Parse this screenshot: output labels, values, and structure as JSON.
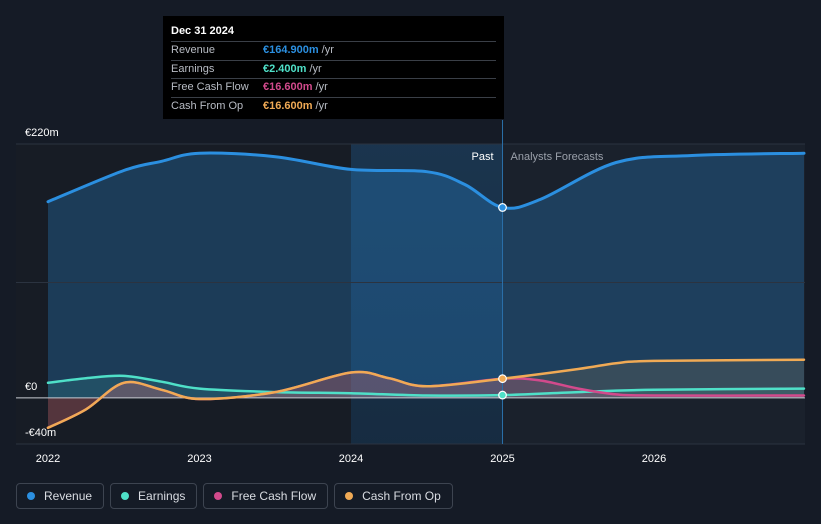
{
  "chart_data": {
    "type": "line",
    "x_ticks": [
      "2022",
      "2023",
      "2024",
      "2025",
      "2026"
    ],
    "x_range": [
      2021.82,
      2026.99
    ],
    "ylim": [
      -40,
      220
    ],
    "y_ticks": [
      {
        "value": 220,
        "label": "€220m"
      },
      {
        "value": 0,
        "label": "€0"
      },
      {
        "value": -40,
        "label": "-€40m"
      }
    ],
    "divider_x": 2025.0,
    "highlight_start": 2024.0,
    "past_label": "Past",
    "forecast_label": "Analysts Forecasts",
    "series": [
      {
        "name": "Revenue",
        "color": "#2b8fe0",
        "points": [
          [
            2022.0,
            170
          ],
          [
            2022.5,
            197
          ],
          [
            2022.75,
            205
          ],
          [
            2023.0,
            212
          ],
          [
            2023.5,
            209
          ],
          [
            2024.0,
            198
          ],
          [
            2024.5,
            196
          ],
          [
            2024.75,
            185
          ],
          [
            2025.0,
            165
          ],
          [
            2025.25,
            172
          ],
          [
            2025.75,
            204
          ],
          [
            2026.25,
            210
          ],
          [
            2026.99,
            212
          ]
        ]
      },
      {
        "name": "Earnings",
        "color": "#4fe0c8",
        "points": [
          [
            2022.0,
            13
          ],
          [
            2022.25,
            17
          ],
          [
            2022.5,
            19
          ],
          [
            2022.75,
            14
          ],
          [
            2023.0,
            8
          ],
          [
            2023.5,
            5
          ],
          [
            2024.0,
            4
          ],
          [
            2024.5,
            2
          ],
          [
            2025.0,
            2.4
          ],
          [
            2025.5,
            5
          ],
          [
            2026.0,
            7
          ],
          [
            2026.99,
            8
          ]
        ]
      },
      {
        "name": "Free Cash Flow",
        "color": "#d24a8c",
        "points": [
          [
            2022.0,
            -26
          ],
          [
            2022.25,
            -10
          ],
          [
            2022.5,
            13
          ],
          [
            2022.75,
            7
          ],
          [
            2023.0,
            -1
          ],
          [
            2023.5,
            5
          ],
          [
            2024.0,
            22
          ],
          [
            2024.25,
            17
          ],
          [
            2024.5,
            10
          ],
          [
            2025.0,
            16.6
          ],
          [
            2025.25,
            15
          ],
          [
            2025.5,
            8
          ],
          [
            2025.75,
            3
          ],
          [
            2026.0,
            2
          ],
          [
            2026.99,
            2
          ]
        ]
      },
      {
        "name": "Cash From Op",
        "color": "#f0aa55",
        "points": [
          [
            2022.0,
            -26
          ],
          [
            2022.25,
            -10
          ],
          [
            2022.5,
            13
          ],
          [
            2022.75,
            7
          ],
          [
            2023.0,
            -1
          ],
          [
            2023.5,
            5
          ],
          [
            2024.0,
            22
          ],
          [
            2024.25,
            17
          ],
          [
            2024.5,
            10
          ],
          [
            2025.0,
            16.6
          ],
          [
            2025.5,
            25
          ],
          [
            2025.75,
            30
          ],
          [
            2026.0,
            32
          ],
          [
            2026.99,
            33
          ]
        ]
      }
    ],
    "markers": [
      {
        "series": "Revenue",
        "x": 2025.0,
        "y": 165
      },
      {
        "series": "Earnings",
        "x": 2025.0,
        "y": 2.4
      },
      {
        "series": "Cash From Op",
        "x": 2025.0,
        "y": 16.6
      }
    ]
  },
  "tooltip": {
    "date": "Dec 31 2024",
    "unit": "/yr",
    "rows": [
      {
        "label": "Revenue",
        "value": "€164.900m",
        "color": "#2b8fe0"
      },
      {
        "label": "Earnings",
        "value": "€2.400m",
        "color": "#4fe0c8"
      },
      {
        "label": "Free Cash Flow",
        "value": "€16.600m",
        "color": "#d24a8c"
      },
      {
        "label": "Cash From Op",
        "value": "€16.600m",
        "color": "#f0aa55"
      }
    ]
  },
  "legend": [
    {
      "label": "Revenue",
      "color": "#2b8fe0"
    },
    {
      "label": "Earnings",
      "color": "#4fe0c8"
    },
    {
      "label": "Free Cash Flow",
      "color": "#d24a8c"
    },
    {
      "label": "Cash From Op",
      "color": "#f0aa55"
    }
  ]
}
